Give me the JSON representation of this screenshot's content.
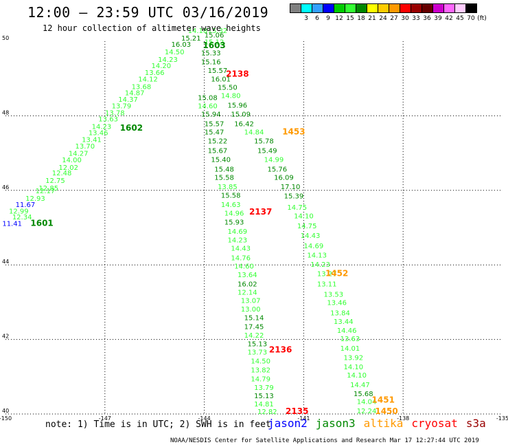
{
  "header": {
    "title": "12:00 – 23:59 UTC 03/16/2019",
    "subtitle": "12 hour collection of altimeter wave heights"
  },
  "color_scale": {
    "colors": [
      "#808080",
      "#00ffff",
      "#33a0ff",
      "#0000ff",
      "#00cc00",
      "#33ff33",
      "#008800",
      "#ffff00",
      "#ffcc00",
      "#ff9900",
      "#ff0000",
      "#990000",
      "#660000",
      "#cc00cc",
      "#ff66ff",
      "#ffccff",
      "#000000"
    ],
    "labels": [
      "3",
      "6",
      "9",
      "12",
      "15",
      "18",
      "21",
      "24",
      "27",
      "30",
      "33",
      "36",
      "39",
      "42",
      "45",
      "70",
      "(ft)"
    ]
  },
  "axes": {
    "x_ticks": [
      "-150",
      "-147",
      "-144",
      "-141",
      "-138",
      "-135"
    ],
    "y_ticks": [
      "50",
      "48",
      "46",
      "44",
      "42",
      "40"
    ],
    "lon_range": [
      -150,
      -135
    ],
    "lat_range": [
      40,
      50
    ]
  },
  "tracks": [
    {
      "label": "1601",
      "color": "#008800",
      "label_lat": 45.05,
      "label_lon": -148.9,
      "values": [
        {
          "v": "11.41",
          "lat": 45.05,
          "lon": -149.8,
          "c": "#0000ff"
        },
        {
          "v": "12.99",
          "lat": 45.38,
          "lon": -149.6,
          "c": "#33ff33"
        },
        {
          "v": "11.67",
          "lat": 45.55,
          "lon": -149.4,
          "c": "#0000ff"
        },
        {
          "v": "12.34",
          "lat": 45.22,
          "lon": -149.5,
          "c": "#33ff33"
        },
        {
          "v": "12.93",
          "lat": 45.72,
          "lon": -149.1,
          "c": "#33ff33"
        },
        {
          "v": "12.17",
          "lat": 45.92,
          "lon": -148.8,
          "c": "#33ff33"
        },
        {
          "v": "12.85",
          "lat": 46.0,
          "lon": -148.7,
          "c": "#33ff33"
        },
        {
          "v": "12.75",
          "lat": 46.2,
          "lon": -148.5,
          "c": "#33ff33"
        },
        {
          "v": "12.48",
          "lat": 46.4,
          "lon": -148.3,
          "c": "#33ff33"
        },
        {
          "v": "12.02",
          "lat": 46.55,
          "lon": -148.1,
          "c": "#33ff33"
        },
        {
          "v": "14.00",
          "lat": 46.75,
          "lon": -148.0,
          "c": "#33ff33"
        },
        {
          "v": "14.27",
          "lat": 46.93,
          "lon": -147.8,
          "c": "#33ff33"
        },
        {
          "v": "13.70",
          "lat": 47.12,
          "lon": -147.6,
          "c": "#33ff33"
        },
        {
          "v": "13.41",
          "lat": 47.3,
          "lon": -147.4,
          "c": "#33ff33"
        },
        {
          "v": "13.46",
          "lat": 47.48,
          "lon": -147.2,
          "c": "#33ff33"
        },
        {
          "v": "14.23",
          "lat": 47.65,
          "lon": -147.1,
          "c": "#33ff33"
        },
        {
          "v": "13.63",
          "lat": 47.85,
          "lon": -146.9,
          "c": "#33ff33"
        },
        {
          "v": "13.78",
          "lat": 48.02,
          "lon": -146.7,
          "c": "#33ff33"
        },
        {
          "v": "13.79",
          "lat": 48.2,
          "lon": -146.5,
          "c": "#33ff33"
        },
        {
          "v": "14.37",
          "lat": 48.38,
          "lon": -146.3,
          "c": "#33ff33"
        },
        {
          "v": "14.87",
          "lat": 48.55,
          "lon": -146.1,
          "c": "#33ff33"
        },
        {
          "v": "13.68",
          "lat": 48.72,
          "lon": -145.9,
          "c": "#33ff33"
        },
        {
          "v": "14.12",
          "lat": 48.92,
          "lon": -145.7,
          "c": "#33ff33"
        },
        {
          "v": "13.66",
          "lat": 49.1,
          "lon": -145.5,
          "c": "#33ff33"
        },
        {
          "v": "14.20",
          "lat": 49.28,
          "lon": -145.3,
          "c": "#33ff33"
        },
        {
          "v": "14.23",
          "lat": 49.45,
          "lon": -145.1,
          "c": "#33ff33"
        },
        {
          "v": "14.50",
          "lat": 49.65,
          "lon": -144.9,
          "c": "#33ff33"
        },
        {
          "v": "16.03",
          "lat": 49.85,
          "lon": -144.7,
          "c": "#008800"
        },
        {
          "v": "15.21",
          "lat": 50.02,
          "lon": -144.4,
          "c": "#008800"
        },
        {
          "v": "14.18",
          "lat": 50.22,
          "lon": -144.2,
          "c": "#33ff33"
        }
      ]
    },
    {
      "label": "1602",
      "color": "#008800",
      "label_lat": 47.6,
      "label_lon": -146.2,
      "values": []
    },
    {
      "label": "1603",
      "color": "#008800",
      "label_lat": 49.82,
      "label_lon": -143.7,
      "values": [
        {
          "v": "15.32",
          "lat": 50.22,
          "lon": -143.6,
          "c": "#33ff33"
        },
        {
          "v": "15.06",
          "lat": 50.1,
          "lon": -143.7,
          "c": "#008800"
        },
        {
          "v": "15.12",
          "lat": 49.92,
          "lon": -143.7,
          "c": "#33ff33"
        },
        {
          "v": "15.33",
          "lat": 49.62,
          "lon": -143.8,
          "c": "#008800"
        },
        {
          "v": "15.16",
          "lat": 49.38,
          "lon": -143.8,
          "c": "#008800"
        },
        {
          "v": "15.57",
          "lat": 49.15,
          "lon": -143.6,
          "c": "#008800"
        },
        {
          "v": "16.01",
          "lat": 48.92,
          "lon": -143.5,
          "c": "#008800"
        },
        {
          "v": "15.50",
          "lat": 48.7,
          "lon": -143.3,
          "c": "#008800"
        },
        {
          "v": "14.80",
          "lat": 48.48,
          "lon": -143.2,
          "c": "#33ff33"
        },
        {
          "v": "15.08",
          "lat": 48.42,
          "lon": -143.9,
          "c": "#008800"
        },
        {
          "v": "15.96",
          "lat": 48.22,
          "lon": -143.0,
          "c": "#008800"
        },
        {
          "v": "14.60",
          "lat": 48.2,
          "lon": -143.9,
          "c": "#33ff33"
        },
        {
          "v": "15.09",
          "lat": 47.98,
          "lon": -142.9,
          "c": "#008800"
        },
        {
          "v": "15.94",
          "lat": 47.98,
          "lon": -143.8,
          "c": "#008800"
        },
        {
          "v": "16.42",
          "lat": 47.72,
          "lon": -142.8,
          "c": "#008800"
        },
        {
          "v": "15.57",
          "lat": 47.72,
          "lon": -143.7,
          "c": "#008800"
        },
        {
          "v": "14.84",
          "lat": 47.5,
          "lon": -142.5,
          "c": "#33ff33"
        },
        {
          "v": "15.47",
          "lat": 47.5,
          "lon": -143.7,
          "c": "#008800"
        },
        {
          "v": "15.78",
          "lat": 47.26,
          "lon": -142.2,
          "c": "#008800"
        },
        {
          "v": "15.22",
          "lat": 47.26,
          "lon": -143.6,
          "c": "#008800"
        },
        {
          "v": "15.49",
          "lat": 47.0,
          "lon": -142.1,
          "c": "#008800"
        },
        {
          "v": "15.67",
          "lat": 47.0,
          "lon": -143.6,
          "c": "#008800"
        },
        {
          "v": "14.99",
          "lat": 46.76,
          "lon": -141.9,
          "c": "#33ff33"
        },
        {
          "v": "15.40",
          "lat": 46.76,
          "lon": -143.5,
          "c": "#008800"
        },
        {
          "v": "15.76",
          "lat": 46.5,
          "lon": -141.8,
          "c": "#008800"
        },
        {
          "v": "15.48",
          "lat": 46.5,
          "lon": -143.4,
          "c": "#008800"
        },
        {
          "v": "16.09",
          "lat": 46.28,
          "lon": -141.6,
          "c": "#008800"
        },
        {
          "v": "15.58",
          "lat": 46.28,
          "lon": -143.4,
          "c": "#008800"
        },
        {
          "v": "17.10",
          "lat": 46.03,
          "lon": -141.4,
          "c": "#008800"
        },
        {
          "v": "13.85",
          "lat": 46.03,
          "lon": -143.3,
          "c": "#33ff33"
        },
        {
          "v": "15.39",
          "lat": 45.78,
          "lon": -141.3,
          "c": "#008800"
        },
        {
          "v": "15.58",
          "lat": 45.8,
          "lon": -143.2,
          "c": "#008800"
        },
        {
          "v": "14.63",
          "lat": 45.55,
          "lon": -143.2,
          "c": "#33ff33"
        },
        {
          "v": "14.75",
          "lat": 45.48,
          "lon": -141.2,
          "c": "#33ff33"
        },
        {
          "v": "14.96",
          "lat": 45.32,
          "lon": -143.1,
          "c": "#33ff33"
        },
        {
          "v": "14.10",
          "lat": 45.25,
          "lon": -141.0,
          "c": "#33ff33"
        },
        {
          "v": "15.93",
          "lat": 45.08,
          "lon": -143.1,
          "c": "#008800"
        },
        {
          "v": "14.75",
          "lat": 44.98,
          "lon": -140.9,
          "c": "#33ff33"
        },
        {
          "v": "14.69",
          "lat": 44.83,
          "lon": -143.0,
          "c": "#33ff33"
        },
        {
          "v": "14.43",
          "lat": 44.72,
          "lon": -140.8,
          "c": "#33ff33"
        },
        {
          "v": "14.23",
          "lat": 44.6,
          "lon": -143.0,
          "c": "#33ff33"
        },
        {
          "v": "14.69",
          "lat": 44.45,
          "lon": -140.7,
          "c": "#33ff33"
        },
        {
          "v": "14.43",
          "lat": 44.38,
          "lon": -142.9,
          "c": "#33ff33"
        },
        {
          "v": "14.13",
          "lat": 44.2,
          "lon": -140.6,
          "c": "#33ff33"
        },
        {
          "v": "14.76",
          "lat": 44.12,
          "lon": -142.9,
          "c": "#33ff33"
        },
        {
          "v": "14.23",
          "lat": 43.95,
          "lon": -140.5,
          "c": "#33ff33"
        },
        {
          "v": "14.60",
          "lat": 43.9,
          "lon": -142.8,
          "c": "#33ff33"
        },
        {
          "v": "13.27",
          "lat": 43.7,
          "lon": -140.3,
          "c": "#33ff33"
        },
        {
          "v": "13.64",
          "lat": 43.67,
          "lon": -142.7,
          "c": "#33ff33"
        },
        {
          "v": "13.11",
          "lat": 43.42,
          "lon": -140.3,
          "c": "#33ff33"
        },
        {
          "v": "16.02",
          "lat": 43.42,
          "lon": -142.7,
          "c": "#008800"
        },
        {
          "v": "13.53",
          "lat": 43.15,
          "lon": -140.1,
          "c": "#33ff33"
        },
        {
          "v": "12.14",
          "lat": 43.2,
          "lon": -142.7,
          "c": "#33ff33"
        },
        {
          "v": "13.46",
          "lat": 42.92,
          "lon": -140.0,
          "c": "#33ff33"
        },
        {
          "v": "13.07",
          "lat": 42.98,
          "lon": -142.6,
          "c": "#33ff33"
        },
        {
          "v": "13.84",
          "lat": 42.65,
          "lon": -139.9,
          "c": "#33ff33"
        },
        {
          "v": "13.00",
          "lat": 42.75,
          "lon": -142.6,
          "c": "#33ff33"
        },
        {
          "v": "13.44",
          "lat": 42.42,
          "lon": -139.8,
          "c": "#33ff33"
        },
        {
          "v": "15.14",
          "lat": 42.52,
          "lon": -142.5,
          "c": "#008800"
        },
        {
          "v": "14.46",
          "lat": 42.18,
          "lon": -139.7,
          "c": "#33ff33"
        },
        {
          "v": "17.45",
          "lat": 42.28,
          "lon": -142.5,
          "c": "#008800"
        },
        {
          "v": "13.63",
          "lat": 41.96,
          "lon": -139.6,
          "c": "#33ff33"
        },
        {
          "v": "14.22",
          "lat": 42.05,
          "lon": -142.5,
          "c": "#33ff33"
        },
        {
          "v": "14.01",
          "lat": 41.7,
          "lon": -139.6,
          "c": "#33ff33"
        },
        {
          "v": "15.13",
          "lat": 41.82,
          "lon": -142.4,
          "c": "#008800"
        },
        {
          "v": "13.92",
          "lat": 41.45,
          "lon": -139.5,
          "c": "#33ff33"
        },
        {
          "v": "13.73",
          "lat": 41.6,
          "lon": -142.4,
          "c": "#33ff33"
        },
        {
          "v": "14.10",
          "lat": 41.2,
          "lon": -139.5,
          "c": "#33ff33"
        },
        {
          "v": "14.50",
          "lat": 41.36,
          "lon": -142.3,
          "c": "#33ff33"
        },
        {
          "v": "14.10",
          "lat": 40.98,
          "lon": -139.4,
          "c": "#33ff33"
        },
        {
          "v": "13.82",
          "lat": 41.12,
          "lon": -142.3,
          "c": "#33ff33"
        },
        {
          "v": "14.47",
          "lat": 40.72,
          "lon": -139.3,
          "c": "#33ff33"
        },
        {
          "v": "14.79",
          "lat": 40.88,
          "lon": -142.3,
          "c": "#33ff33"
        },
        {
          "v": "15.68",
          "lat": 40.48,
          "lon": -139.2,
          "c": "#008800"
        },
        {
          "v": "13.79",
          "lat": 40.65,
          "lon": -142.2,
          "c": "#33ff33"
        },
        {
          "v": "14.04",
          "lat": 40.27,
          "lon": -139.1,
          "c": "#33ff33"
        },
        {
          "v": "15.13",
          "lat": 40.42,
          "lon": -142.2,
          "c": "#008800"
        },
        {
          "v": "12.24",
          "lat": 40.02,
          "lon": -139.1,
          "c": "#33ff33"
        },
        {
          "v": "14.81",
          "lat": 40.2,
          "lon": -142.2,
          "c": "#33ff33"
        },
        {
          "v": "12.82",
          "lat": 40.0,
          "lon": -142.1,
          "c": "#33ff33"
        }
      ]
    },
    {
      "label": "2138",
      "color": "#ff0000",
      "label_lat": 49.05,
      "label_lon": -143.0,
      "values": []
    },
    {
      "label": "2137",
      "color": "#ff0000",
      "label_lat": 45.35,
      "label_lon": -142.3,
      "values": []
    },
    {
      "label": "2136",
      "color": "#ff0000",
      "label_lat": 41.65,
      "label_lon": -141.7,
      "values": []
    },
    {
      "label": "2135",
      "color": "#ff0000",
      "label_lat": 40.0,
      "label_lon": -141.2,
      "values": []
    },
    {
      "label": "1453",
      "color": "#ff9900",
      "label_lat": 47.5,
      "label_lon": -141.3,
      "values": []
    },
    {
      "label": "1452",
      "color": "#ff9900",
      "label_lat": 43.7,
      "label_lon": -140.0,
      "values": []
    },
    {
      "label": "1451",
      "color": "#ff9900",
      "label_lat": 40.3,
      "label_lon": -138.6,
      "values": []
    },
    {
      "label": "1450",
      "color": "#ff9900",
      "label_lat": 40.0,
      "label_lon": -138.5,
      "values": []
    }
  ],
  "note": "note: 1) Time is in UTC; 2) SWH is in feet",
  "legend": [
    {
      "label": "jason2",
      "color": "#0000ff"
    },
    {
      "label": "jason3",
      "color": "#008800"
    },
    {
      "label": "altika",
      "color": "#ff9900"
    },
    {
      "label": "cryosat",
      "color": "#ff0000"
    },
    {
      "label": "s3a",
      "color": "#990000"
    }
  ],
  "footer": "NOAA/NESDIS Center for Satellite Applications and Research   Mar 17 12:27:44 UTC 2019"
}
